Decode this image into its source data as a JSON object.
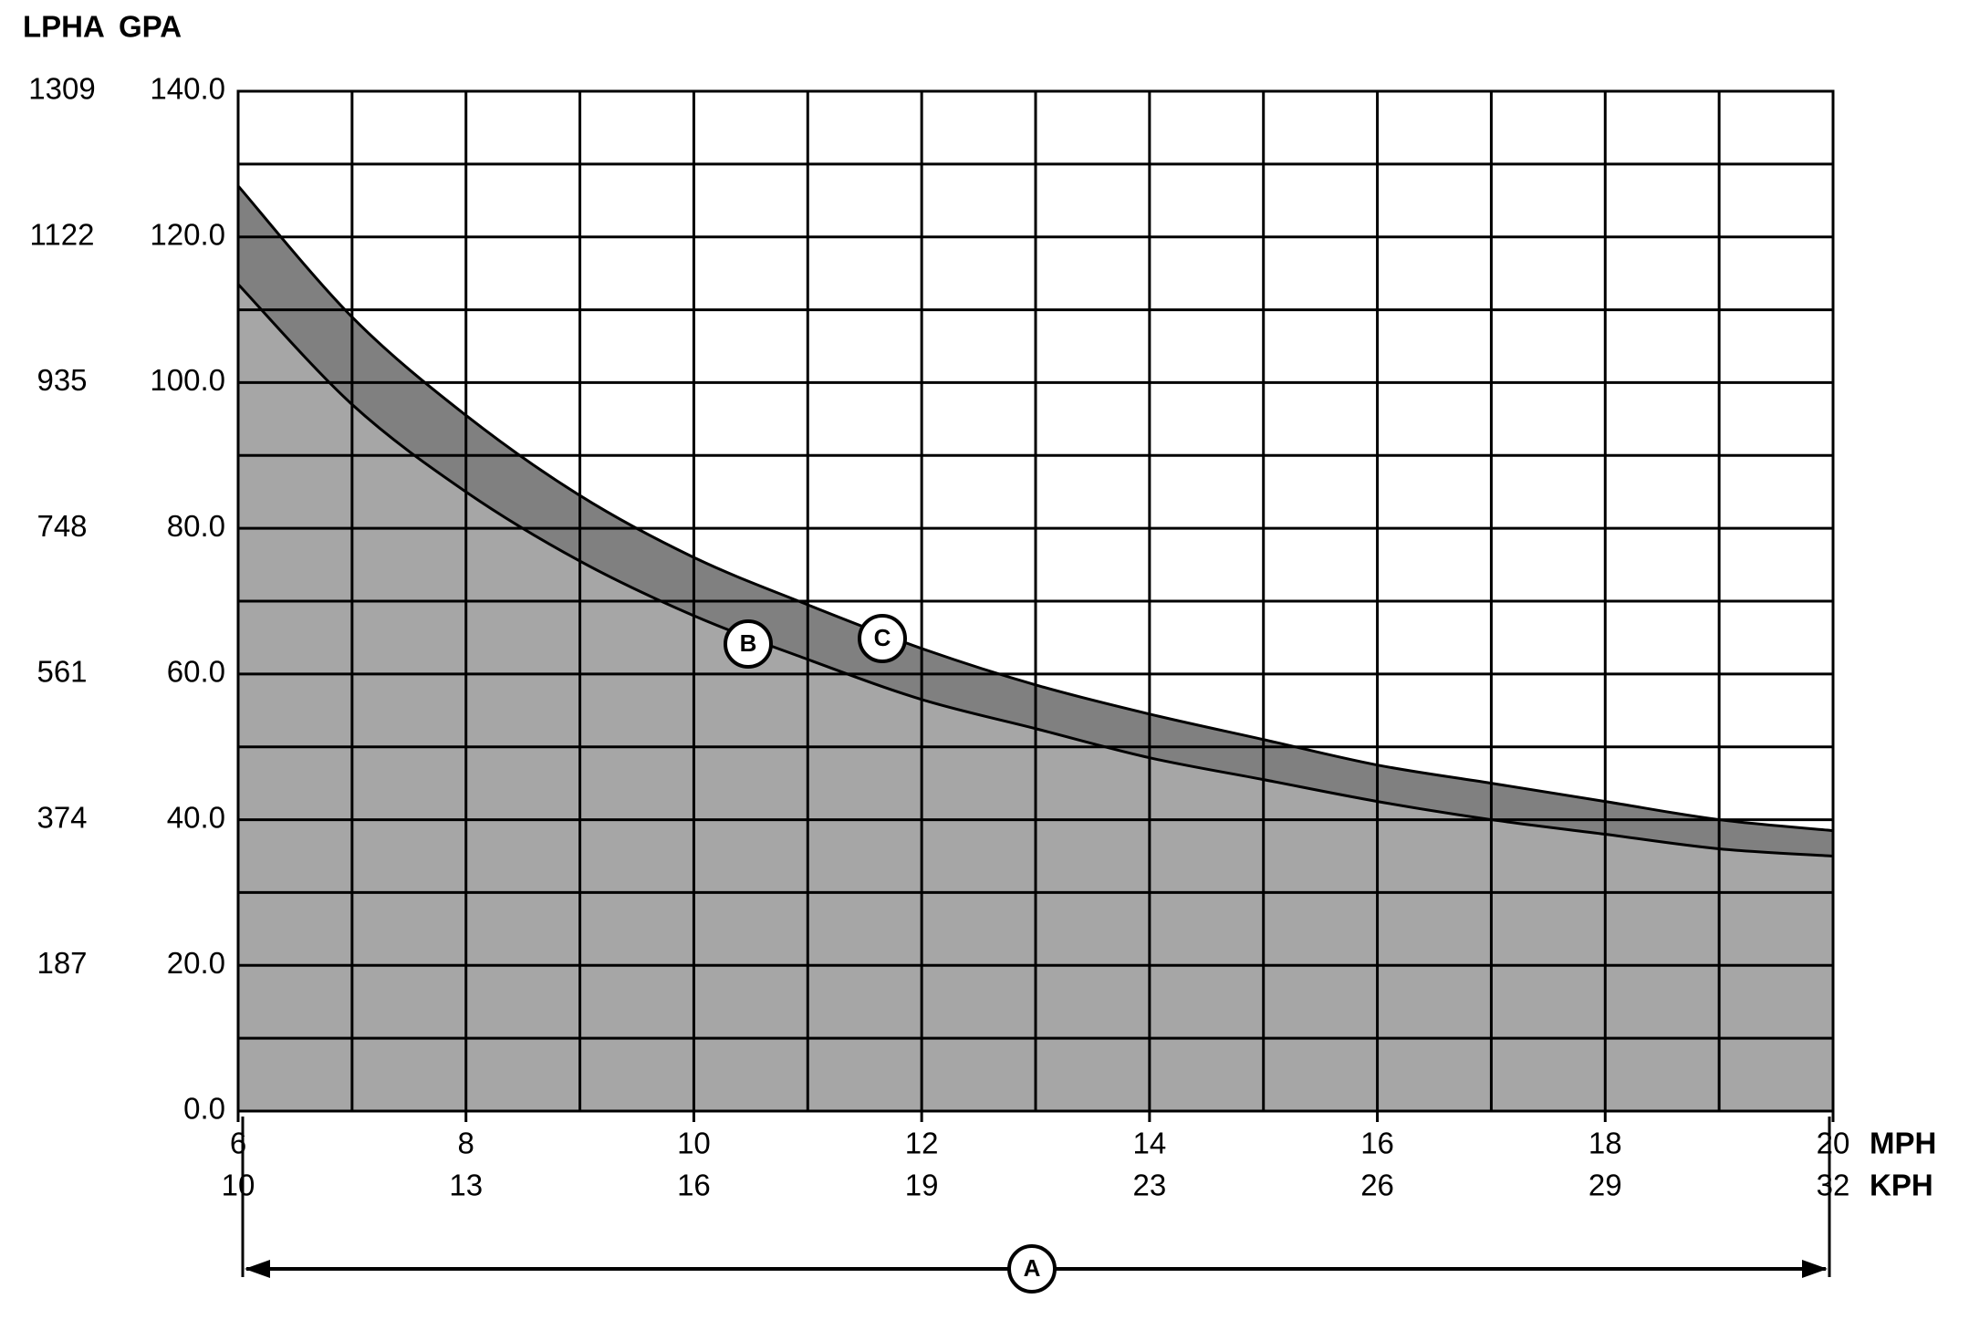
{
  "chart_data": {
    "type": "line",
    "y2_label": "LPHA",
    "y_label": "GPA",
    "x_label": "MPH",
    "x2_label": "KPH",
    "x": [
      6,
      7,
      8,
      9,
      10,
      11,
      12,
      13,
      14,
      15,
      16,
      17,
      18,
      19,
      20
    ],
    "series": [
      {
        "name": "B",
        "color": "#a6a6a6",
        "values": [
          113.5,
          97,
          85,
          75.5,
          68,
          62,
          56.5,
          52.5,
          48.5,
          45.5,
          42.5,
          40,
          38,
          36,
          35
        ]
      },
      {
        "name": "C",
        "color": "#808080",
        "values": [
          127,
          109,
          95.5,
          84.5,
          76,
          69.5,
          63.5,
          58.5,
          54.5,
          51,
          47.5,
          45,
          42.5,
          40,
          38.5
        ]
      }
    ],
    "xlim": [
      6,
      20
    ],
    "xticks": [
      6,
      8,
      10,
      12,
      14,
      16,
      18,
      20
    ],
    "x2ticks": [
      10,
      13,
      16,
      19,
      23,
      26,
      29,
      32
    ],
    "xminor": [
      7,
      9,
      11,
      13,
      15,
      17,
      19
    ],
    "ylim": [
      0,
      140
    ],
    "yticks": [
      {
        "value": 0,
        "label": "0.0"
      },
      {
        "value": 20,
        "label": "20.0"
      },
      {
        "value": 40,
        "label": "40.0"
      },
      {
        "value": 60,
        "label": "60.0"
      },
      {
        "value": 80,
        "label": "80.0"
      },
      {
        "value": 100,
        "label": "100.0"
      },
      {
        "value": 120,
        "label": "120.0"
      },
      {
        "value": 140,
        "label": "140.0"
      }
    ],
    "yminor": [
      10,
      30,
      50,
      70,
      90,
      110,
      130
    ],
    "y2lim": [
      0,
      1309
    ],
    "y2ticks": [
      187,
      374,
      561,
      748,
      935,
      1122,
      1309
    ],
    "grid": true,
    "annotations": {
      "range": "A"
    }
  }
}
